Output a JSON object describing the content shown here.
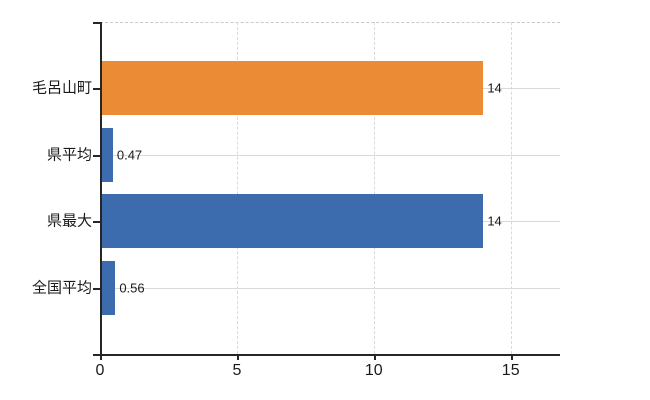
{
  "chart_data": {
    "type": "bar",
    "orientation": "horizontal",
    "title": "",
    "categories": [
      "毛呂山町",
      "県平均",
      "県最大",
      "全国平均"
    ],
    "values": [
      14,
      0.47,
      14,
      0.56
    ],
    "value_labels": [
      "14",
      "0.47",
      "14",
      "0.56"
    ],
    "bar_colors": [
      "#EC8B35",
      "#3C6CAE",
      "#3C6CAE",
      "#3C6CAE"
    ],
    "x_ticks": [
      0,
      5,
      10,
      15
    ],
    "x_tick_labels": [
      "0",
      "5",
      "10",
      "15"
    ],
    "xlim": [
      0,
      16.8
    ],
    "grid": true,
    "legend": "none",
    "colors": {
      "axis": "#262626",
      "gridline": "#d9d9d9",
      "top_border": "#c9c9c9",
      "text": "#1a1a1a"
    }
  }
}
